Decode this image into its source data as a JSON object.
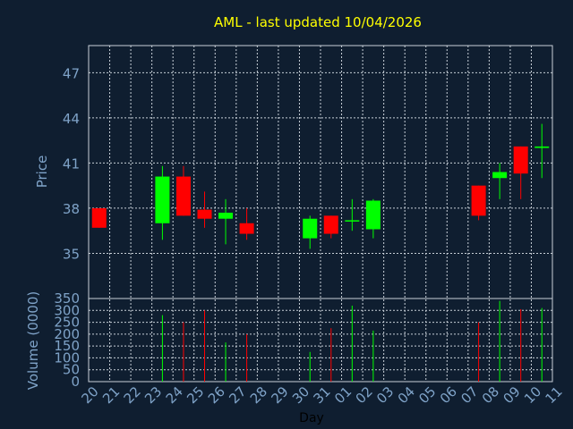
{
  "chart_data": {
    "type": "candlestick",
    "title": "AML - last updated 10/04/2026",
    "xlabel": "Day",
    "price_panel": {
      "ylabel": "Price",
      "ylim": [
        32,
        48.8
      ],
      "yticks": [
        35,
        38,
        41,
        44,
        47
      ]
    },
    "volume_panel": {
      "ylabel": "Volume (0000)",
      "ylim": [
        0,
        350
      ],
      "yticks": [
        0,
        50,
        100,
        150,
        200,
        250,
        300,
        350
      ]
    },
    "x_tick_labels": [
      "20",
      "21",
      "22",
      "23",
      "24",
      "25",
      "26",
      "27",
      "28",
      "29",
      "30",
      "31",
      "01",
      "02",
      "03",
      "04",
      "05",
      "06",
      "07",
      "08",
      "09",
      "10",
      "11"
    ],
    "colors": {
      "up": "#00ff00",
      "down": "#ff0000",
      "background": "#0f1e30",
      "grid": "#c8d0d8",
      "title": "#ffff00",
      "label": "#7fa3c8"
    },
    "candles": [
      {
        "label": "20",
        "open": 38.0,
        "close": 36.7,
        "high": 38.0,
        "low": 36.7,
        "volume": 0
      },
      {
        "label": "23",
        "open": 37.0,
        "close": 40.1,
        "high": 40.8,
        "low": 35.9,
        "volume": 280
      },
      {
        "label": "24",
        "open": 40.1,
        "close": 37.5,
        "high": 40.8,
        "low": 37.5,
        "volume": 250
      },
      {
        "label": "25",
        "open": 37.9,
        "close": 37.3,
        "high": 39.1,
        "low": 36.7,
        "volume": 300
      },
      {
        "label": "26",
        "open": 37.3,
        "close": 37.7,
        "high": 38.6,
        "low": 35.6,
        "volume": 165
      },
      {
        "label": "27",
        "open": 37.0,
        "close": 36.3,
        "high": 38.0,
        "low": 35.9,
        "volume": 200
      },
      {
        "label": "30",
        "open": 36.0,
        "close": 37.3,
        "high": 37.5,
        "low": 35.3,
        "volume": 125
      },
      {
        "label": "31",
        "open": 37.5,
        "close": 36.3,
        "high": 37.5,
        "low": 36.0,
        "volume": 225
      },
      {
        "label": "01",
        "open": 37.2,
        "close": 37.2,
        "high": 38.6,
        "low": 36.5,
        "volume": 320
      },
      {
        "label": "02",
        "open": 36.6,
        "close": 38.5,
        "high": 38.6,
        "low": 36.0,
        "volume": 215
      },
      {
        "label": "07",
        "open": 39.5,
        "close": 37.5,
        "high": 39.5,
        "low": 37.2,
        "volume": 250
      },
      {
        "label": "08",
        "open": 40.0,
        "close": 40.4,
        "high": 41.0,
        "low": 38.6,
        "volume": 340
      },
      {
        "label": "09",
        "open": 42.1,
        "close": 40.3,
        "high": 42.1,
        "low": 38.6,
        "volume": 305
      },
      {
        "label": "10",
        "open": 42.0,
        "close": 42.1,
        "high": 43.6,
        "low": 40.0,
        "volume": 310
      }
    ]
  }
}
